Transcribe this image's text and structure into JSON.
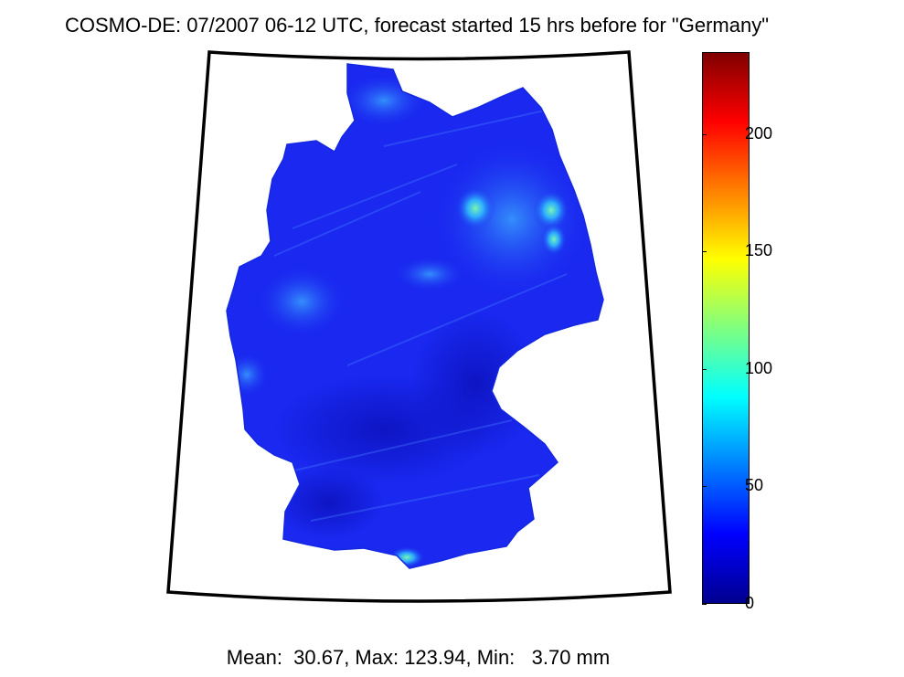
{
  "title": "COSMO-DE: 07/2007 06-12 UTC, forecast started 15 hrs before for \"Germany\"",
  "region": "Germany",
  "colorbar": {
    "min": 0,
    "max": 235,
    "ticks": [
      "0",
      "50",
      "100",
      "150",
      "200"
    ],
    "tick_values": [
      0,
      50,
      100,
      150,
      200
    ],
    "colormap": "jet"
  },
  "stats_text": "Mean:  30.67, Max: 123.94, Min:   3.70 mm",
  "stats": {
    "mean": 30.67,
    "max": 123.94,
    "min": 3.7,
    "unit": "mm"
  },
  "colors": {
    "field_base": "#1a28f0",
    "field_dark": "#0b12c8",
    "highlight": "#3aa8ff",
    "peak": "#5ef0d0"
  }
}
